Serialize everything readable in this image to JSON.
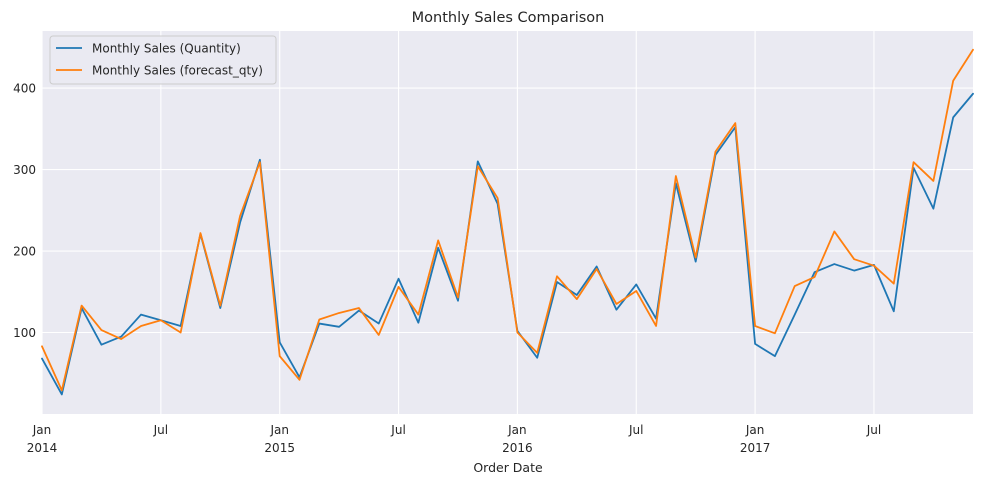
{
  "chart_data": {
    "type": "line",
    "title": "Monthly Sales Comparison",
    "xlabel": "Order Date",
    "ylabel": "",
    "grid": true,
    "legend_position": "top-left",
    "ylim": [
      0,
      470
    ],
    "xlim": [
      0,
      47
    ],
    "x": [
      "2014-01",
      "2014-02",
      "2014-03",
      "2014-04",
      "2014-05",
      "2014-06",
      "2014-07",
      "2014-08",
      "2014-09",
      "2014-10",
      "2014-11",
      "2014-12",
      "2015-01",
      "2015-02",
      "2015-03",
      "2015-04",
      "2015-05",
      "2015-06",
      "2015-07",
      "2015-08",
      "2015-09",
      "2015-10",
      "2015-11",
      "2015-12",
      "2016-01",
      "2016-02",
      "2016-03",
      "2016-04",
      "2016-05",
      "2016-06",
      "2016-07",
      "2016-08",
      "2016-09",
      "2016-10",
      "2016-11",
      "2016-12",
      "2017-01",
      "2017-02",
      "2017-03",
      "2017-04",
      "2017-05",
      "2017-06",
      "2017-07",
      "2017-08",
      "2017-09",
      "2017-10",
      "2017-11",
      "2017-12"
    ],
    "y_ticks": [
      100,
      200,
      300,
      400
    ],
    "x_ticks": [
      {
        "month_index": 0,
        "label": "Jan",
        "sublabel": "2014"
      },
      {
        "month_index": 6,
        "label": "Jul",
        "sublabel": ""
      },
      {
        "month_index": 12,
        "label": "Jan",
        "sublabel": "2015"
      },
      {
        "month_index": 18,
        "label": "Jul",
        "sublabel": ""
      },
      {
        "month_index": 24,
        "label": "Jan",
        "sublabel": "2016"
      },
      {
        "month_index": 30,
        "label": "Jul",
        "sublabel": ""
      },
      {
        "month_index": 36,
        "label": "Jan",
        "sublabel": "2017"
      },
      {
        "month_index": 42,
        "label": "Jul",
        "sublabel": ""
      }
    ],
    "series": [
      {
        "name": "Monthly Sales (Quantity)",
        "color": "#1f77b4",
        "values": [
          68,
          24,
          130,
          85,
          95,
          122,
          115,
          108,
          221,
          130,
          235,
          312,
          88,
          45,
          111,
          107,
          127,
          111,
          166,
          112,
          204,
          139,
          310,
          258,
          102,
          69,
          162,
          146,
          181,
          128,
          159,
          117,
          283,
          187,
          318,
          352,
          86,
          71,
          122,
          174,
          184,
          176,
          183,
          126,
          302,
          252,
          364,
          393
        ]
      },
      {
        "name": "Monthly Sales (forecast_qty)",
        "color": "#ff7f0e",
        "values": [
          83,
          29,
          133,
          103,
          92,
          108,
          115,
          100,
          222,
          133,
          243,
          309,
          71,
          42,
          116,
          124,
          130,
          97,
          156,
          122,
          213,
          143,
          304,
          265,
          100,
          75,
          169,
          141,
          178,
          135,
          151,
          108,
          292,
          192,
          322,
          357,
          108,
          99,
          157,
          168,
          224,
          190,
          182,
          160,
          309,
          286,
          409,
          447
        ]
      }
    ]
  }
}
